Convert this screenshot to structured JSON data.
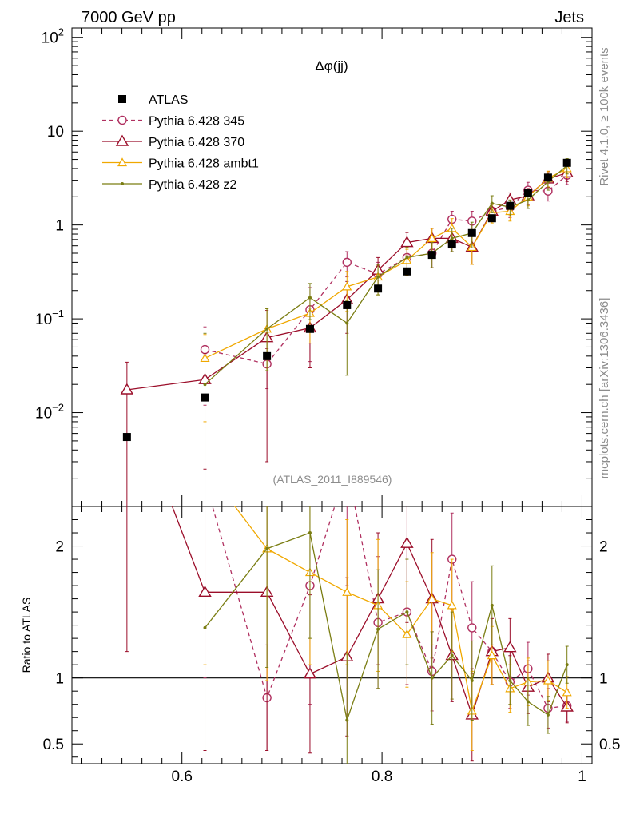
{
  "header": {
    "left_title": "7000 GeV pp",
    "right_title": "Jets",
    "side_text_top": "Rivet 4.1.0, ≥ 100k events",
    "side_text_bottom": "mcplots.cern.ch [arXiv:1306.3436]"
  },
  "chart_data": {
    "type": "scatter",
    "title": "Δφ(jj)",
    "analysis_label": "(ATLAS_2011_I889546)",
    "xlabel": "",
    "ylabel_ratio": "Ratio to ATLAS",
    "xlim": [
      0.49,
      1.01
    ],
    "ylim_main_log10": [
      -3.0,
      2.1
    ],
    "ylim_ratio": [
      0.35,
      2.3
    ],
    "x_ticks": [
      {
        "value": 0.6,
        "label": "0.6"
      },
      {
        "value": 0.8,
        "label": "0.8"
      },
      {
        "value": 1.0,
        "label": "1"
      }
    ],
    "y_ticks_main": [
      {
        "value": 100,
        "base": "10",
        "exp": "2"
      },
      {
        "value": 10,
        "base": "10",
        "exp": ""
      },
      {
        "value": 1,
        "base": "1",
        "exp": ""
      },
      {
        "value": 0.1,
        "base": "10",
        "exp": "−1"
      },
      {
        "value": 0.01,
        "base": "10",
        "exp": "−2"
      }
    ],
    "y_ticks_ratio": [
      {
        "value": 0.5,
        "label": "0.5"
      },
      {
        "value": 1,
        "label": "1"
      },
      {
        "value": 2,
        "label": "2"
      }
    ],
    "reference": {
      "name": "ATLAS",
      "color": "#000000",
      "x": [
        0.545,
        0.623,
        0.685,
        0.728,
        0.765,
        0.796,
        0.825,
        0.85,
        0.87,
        0.89,
        0.91,
        0.928,
        0.946,
        0.966,
        0.985
      ],
      "y": [
        0.0055,
        0.0145,
        0.04,
        0.078,
        0.14,
        0.21,
        0.32,
        0.48,
        0.62,
        0.82,
        1.18,
        1.6,
        2.2,
        3.2,
        4.6
      ]
    },
    "series": [
      {
        "name": "Pythia 6.428 345",
        "color": "#b03060",
        "dashed": true,
        "marker": "circle",
        "x": [
          0.623,
          0.685,
          0.728,
          0.765,
          0.796,
          0.825,
          0.85,
          0.87,
          0.89,
          0.91,
          0.928,
          0.946,
          0.966,
          0.985
        ],
        "y": [
          0.047,
          0.033,
          0.125,
          0.4,
          0.3,
          0.45,
          0.5,
          1.15,
          1.1,
          1.4,
          1.55,
          2.35,
          2.3,
          3.4
        ],
        "err": [
          0.035,
          0.015,
          0.09,
          0.12,
          0.1,
          0.12,
          0.15,
          0.25,
          0.3,
          0.3,
          0.35,
          0.5,
          0.5,
          0.7
        ],
        "ratio": [
          2.5,
          0.85,
          1.7,
          2.6,
          1.42,
          1.5,
          1.05,
          1.9,
          1.38,
          1.2,
          0.97,
          1.07,
          0.77,
          0.79
        ],
        "ratio_err": [
          1.5,
          0.4,
          0.9,
          0.9,
          0.5,
          0.55,
          0.3,
          0.35,
          0.35,
          0.25,
          0.2,
          0.2,
          0.15,
          0.12
        ]
      },
      {
        "name": "Pythia 6.428 370",
        "color": "#9b0e2a",
        "dashed": false,
        "marker": "triangle",
        "x": [
          0.545,
          0.623,
          0.685,
          0.728,
          0.765,
          0.796,
          0.825,
          0.85,
          0.87,
          0.89,
          0.91,
          0.928,
          0.946,
          0.966,
          0.985
        ],
        "y": [
          0.0175,
          0.0225,
          0.063,
          0.08,
          0.16,
          0.33,
          0.65,
          0.72,
          0.72,
          0.58,
          1.4,
          1.85,
          2.05,
          3.1,
          3.6
        ],
        "err": [
          0.017,
          0.02,
          0.06,
          0.05,
          0.09,
          0.12,
          0.18,
          0.2,
          0.2,
          0.2,
          0.3,
          0.35,
          0.4,
          0.6,
          0.7
        ],
        "ratio": [
          3.2,
          1.65,
          1.65,
          1.03,
          1.16,
          1.6,
          2.02,
          1.6,
          1.17,
          0.72,
          1.2,
          1.23,
          0.93,
          1.0,
          0.78
        ],
        "ratio_err": [
          2.0,
          1.2,
          1.2,
          0.6,
          0.6,
          0.5,
          0.6,
          0.45,
          0.35,
          0.35,
          0.25,
          0.22,
          0.2,
          0.18,
          0.12
        ]
      },
      {
        "name": "Pythia 6.428 ambt1",
        "color": "#f0a800",
        "dashed": false,
        "marker": "triangle-small",
        "x": [
          0.623,
          0.685,
          0.728,
          0.765,
          0.796,
          0.825,
          0.85,
          0.87,
          0.89,
          0.91,
          0.928,
          0.946,
          0.966,
          0.985
        ],
        "y": [
          0.038,
          0.078,
          0.115,
          0.22,
          0.28,
          0.42,
          0.72,
          0.92,
          0.58,
          1.35,
          1.4,
          2.0,
          3.15,
          4.0
        ],
        "err": [
          0.03,
          0.05,
          0.06,
          0.1,
          0.1,
          0.13,
          0.2,
          0.25,
          0.2,
          0.3,
          0.3,
          0.4,
          0.6,
          0.8
        ],
        "ratio": [
          2.6,
          1.98,
          1.8,
          1.65,
          1.55,
          1.33,
          1.6,
          1.55,
          0.75,
          1.17,
          0.92,
          0.97,
          0.98,
          0.89
        ],
        "ratio_err": [
          1.5,
          1.0,
          0.7,
          0.55,
          0.5,
          0.4,
          0.35,
          0.35,
          0.3,
          0.22,
          0.18,
          0.18,
          0.15,
          0.12
        ]
      },
      {
        "name": "Pythia 6.428 z2",
        "color": "#7a7d12",
        "dashed": false,
        "marker": "dot",
        "x": [
          0.623,
          0.685,
          0.728,
          0.765,
          0.796,
          0.825,
          0.85,
          0.87,
          0.89,
          0.91,
          0.928,
          0.946,
          0.966,
          0.985
        ],
        "y": [
          0.02,
          0.078,
          0.168,
          0.09,
          0.28,
          0.45,
          0.5,
          0.72,
          0.82,
          1.7,
          1.55,
          1.85,
          2.9,
          4.3
        ],
        "err": [
          0.05,
          0.05,
          0.07,
          0.065,
          0.1,
          0.13,
          0.15,
          0.2,
          0.25,
          0.35,
          0.3,
          0.35,
          0.55,
          0.8
        ],
        "ratio": [
          1.38,
          1.98,
          2.1,
          0.68,
          1.37,
          1.5,
          1.0,
          1.17,
          0.98,
          1.55,
          0.98,
          0.82,
          0.72,
          1.1
        ],
        "ratio_err": [
          1.4,
          0.9,
          0.8,
          0.5,
          0.45,
          0.4,
          0.35,
          0.33,
          0.3,
          0.3,
          0.18,
          0.18,
          0.14,
          0.14
        ]
      }
    ]
  }
}
